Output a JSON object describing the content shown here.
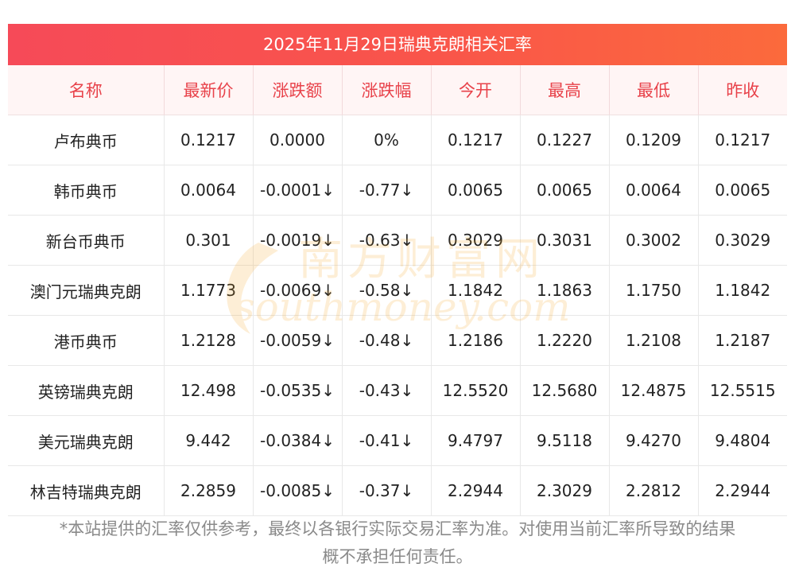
{
  "banner": {
    "title": "2025年11月29日瑞典克朗相关汇率"
  },
  "table": {
    "headers": [
      "名称",
      "最新价",
      "涨跌额",
      "涨跌幅",
      "今开",
      "最高",
      "最低",
      "昨收"
    ],
    "rows": [
      {
        "name": "卢布典币",
        "latest": "0.1217",
        "change": "0.0000",
        "change_pct": "0%",
        "open": "0.1217",
        "high": "0.1227",
        "low": "0.1209",
        "prev_close": "0.1217",
        "down": false
      },
      {
        "name": "韩币典币",
        "latest": "0.0064",
        "change": "-0.0001",
        "change_pct": "-0.77",
        "open": "0.0065",
        "high": "0.0065",
        "low": "0.0064",
        "prev_close": "0.0065",
        "down": true
      },
      {
        "name": "新台币典币",
        "latest": "0.301",
        "change": "-0.0019",
        "change_pct": "-0.63",
        "open": "0.3029",
        "high": "0.3031",
        "low": "0.3002",
        "prev_close": "0.3029",
        "down": true
      },
      {
        "name": "澳门元瑞典克朗",
        "latest": "1.1773",
        "change": "-0.0069",
        "change_pct": "-0.58",
        "open": "1.1842",
        "high": "1.1863",
        "low": "1.1750",
        "prev_close": "1.1842",
        "down": true
      },
      {
        "name": "港币典币",
        "latest": "1.2128",
        "change": "-0.0059",
        "change_pct": "-0.48",
        "open": "1.2186",
        "high": "1.2220",
        "low": "1.2108",
        "prev_close": "1.2187",
        "down": true
      },
      {
        "name": "英镑瑞典克朗",
        "latest": "12.498",
        "change": "-0.0535",
        "change_pct": "-0.43",
        "open": "12.5520",
        "high": "12.5680",
        "low": "12.4875",
        "prev_close": "12.5515",
        "down": true
      },
      {
        "name": "美元瑞典克朗",
        "latest": "9.442",
        "change": "-0.0384",
        "change_pct": "-0.41",
        "open": "9.4797",
        "high": "9.5118",
        "low": "9.4270",
        "prev_close": "9.4804",
        "down": true
      },
      {
        "name": "林吉特瑞典克朗",
        "latest": "2.2859",
        "change": "-0.0085",
        "change_pct": "-0.37",
        "open": "2.2944",
        "high": "2.3029",
        "low": "2.2812",
        "prev_close": "2.2944",
        "down": true
      }
    ],
    "down_arrow": "↓"
  },
  "watermark": {
    "cn": "南方财富网",
    "en": "southmoney.com"
  },
  "footnote": {
    "line1": "*本站提供的汇率仅供参考，最终以各银行实际交易汇率为准。对使用当前汇率所导致的结果",
    "line2": "概不承担任何责任。"
  },
  "colors": {
    "accent": "#f64a58",
    "header_text": "#e8424a",
    "down": "#0f8a16",
    "watermark": "#f5a623"
  }
}
